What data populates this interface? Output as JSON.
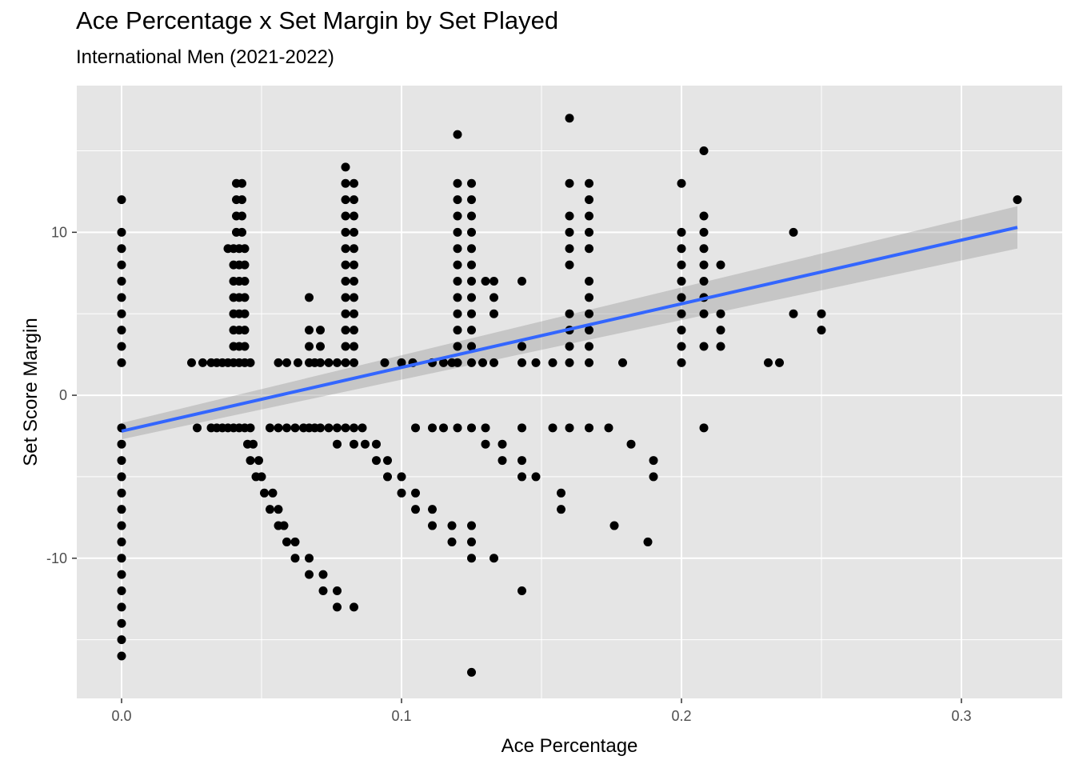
{
  "chart_data": {
    "type": "scatter",
    "title": "Ace Percentage x Set Margin by Set Played",
    "subtitle": "International Men (2021-2022)",
    "xlabel": "Ace Percentage",
    "ylabel": "Set Score Margin",
    "xlim": [
      -0.016,
      0.336
    ],
    "ylim": [
      -18.6,
      19.0
    ],
    "x_ticks": [
      {
        "value": 0.0,
        "label": "0.0"
      },
      {
        "value": 0.1,
        "label": "0.1"
      },
      {
        "value": 0.2,
        "label": "0.2"
      },
      {
        "value": 0.3,
        "label": "0.3"
      }
    ],
    "y_ticks": [
      {
        "value": 10,
        "label": "10"
      },
      {
        "value": 0,
        "label": "0"
      },
      {
        "value": -10,
        "label": "-10"
      }
    ],
    "grid": true,
    "colors": {
      "panel": "#e5e5e5",
      "grid": "#ffffff",
      "points": "#000000",
      "trend": "#3366ff",
      "band": "#999999"
    },
    "trend_line": {
      "method": "linear",
      "x": [
        0.0,
        0.32
      ],
      "y": [
        -2.2,
        10.3
      ],
      "ci_lower": [
        -2.7,
        9.0
      ],
      "ci_upper": [
        -1.7,
        11.6
      ]
    },
    "points": [
      [
        0,
        12
      ],
      [
        0,
        10
      ],
      [
        0,
        9
      ],
      [
        0,
        8
      ],
      [
        0,
        7
      ],
      [
        0,
        6
      ],
      [
        0,
        5
      ],
      [
        0,
        4
      ],
      [
        0,
        3
      ],
      [
        0,
        2
      ],
      [
        0,
        -2
      ],
      [
        0,
        -3
      ],
      [
        0,
        -4
      ],
      [
        0,
        -5
      ],
      [
        0,
        -6
      ],
      [
        0,
        -7
      ],
      [
        0,
        -8
      ],
      [
        0,
        -9
      ],
      [
        0,
        -10
      ],
      [
        0,
        -11
      ],
      [
        0,
        -12
      ],
      [
        0,
        -13
      ],
      [
        0,
        -14
      ],
      [
        0,
        -15
      ],
      [
        0,
        -16
      ],
      [
        0.025,
        2
      ],
      [
        0.029,
        2
      ],
      [
        0.032,
        2
      ],
      [
        0.034,
        2
      ],
      [
        0.036,
        2
      ],
      [
        0.038,
        2
      ],
      [
        0.04,
        2
      ],
      [
        0.042,
        2
      ],
      [
        0.044,
        2
      ],
      [
        0.046,
        2
      ],
      [
        0.027,
        -2
      ],
      [
        0.032,
        -2
      ],
      [
        0.034,
        -2
      ],
      [
        0.036,
        -2
      ],
      [
        0.038,
        -2
      ],
      [
        0.04,
        -2
      ],
      [
        0.042,
        -2
      ],
      [
        0.044,
        -2
      ],
      [
        0.046,
        -2
      ],
      [
        0.041,
        13
      ],
      [
        0.043,
        13
      ],
      [
        0.041,
        12
      ],
      [
        0.043,
        12
      ],
      [
        0.041,
        11
      ],
      [
        0.043,
        11
      ],
      [
        0.041,
        10
      ],
      [
        0.043,
        10
      ],
      [
        0.038,
        9
      ],
      [
        0.04,
        9
      ],
      [
        0.042,
        9
      ],
      [
        0.044,
        9
      ],
      [
        0.04,
        8
      ],
      [
        0.042,
        8
      ],
      [
        0.044,
        8
      ],
      [
        0.04,
        7
      ],
      [
        0.042,
        7
      ],
      [
        0.044,
        7
      ],
      [
        0.04,
        6
      ],
      [
        0.042,
        6
      ],
      [
        0.044,
        6
      ],
      [
        0.04,
        5
      ],
      [
        0.042,
        5
      ],
      [
        0.044,
        5
      ],
      [
        0.04,
        4
      ],
      [
        0.042,
        4
      ],
      [
        0.044,
        4
      ],
      [
        0.04,
        3
      ],
      [
        0.042,
        3
      ],
      [
        0.044,
        3
      ],
      [
        0.045,
        -3
      ],
      [
        0.047,
        -3
      ],
      [
        0.046,
        -4
      ],
      [
        0.049,
        -4
      ],
      [
        0.048,
        -5
      ],
      [
        0.05,
        -5
      ],
      [
        0.051,
        -6
      ],
      [
        0.054,
        -6
      ],
      [
        0.053,
        -7
      ],
      [
        0.056,
        -7
      ],
      [
        0.056,
        -8
      ],
      [
        0.058,
        -8
      ],
      [
        0.059,
        -9
      ],
      [
        0.062,
        -9
      ],
      [
        0.062,
        -10
      ],
      [
        0.067,
        -10
      ],
      [
        0.067,
        -11
      ],
      [
        0.072,
        -11
      ],
      [
        0.072,
        -12
      ],
      [
        0.077,
        -12
      ],
      [
        0.077,
        -13
      ],
      [
        0.083,
        -13
      ],
      [
        0.056,
        2
      ],
      [
        0.059,
        2
      ],
      [
        0.063,
        2
      ],
      [
        0.067,
        2
      ],
      [
        0.069,
        2
      ],
      [
        0.071,
        2
      ],
      [
        0.074,
        2
      ],
      [
        0.077,
        2
      ],
      [
        0.08,
        2
      ],
      [
        0.083,
        2
      ],
      [
        0.053,
        -2
      ],
      [
        0.056,
        -2
      ],
      [
        0.059,
        -2
      ],
      [
        0.062,
        -2
      ],
      [
        0.065,
        -2
      ],
      [
        0.067,
        -2
      ],
      [
        0.069,
        -2
      ],
      [
        0.071,
        -2
      ],
      [
        0.074,
        -2
      ],
      [
        0.077,
        -2
      ],
      [
        0.08,
        -2
      ],
      [
        0.083,
        -2
      ],
      [
        0.086,
        -2
      ],
      [
        0.067,
        6
      ],
      [
        0.067,
        4
      ],
      [
        0.071,
        4
      ],
      [
        0.067,
        3
      ],
      [
        0.071,
        3
      ],
      [
        0.08,
        14
      ],
      [
        0.08,
        13
      ],
      [
        0.083,
        13
      ],
      [
        0.08,
        12
      ],
      [
        0.083,
        12
      ],
      [
        0.08,
        11
      ],
      [
        0.083,
        11
      ],
      [
        0.08,
        10
      ],
      [
        0.083,
        10
      ],
      [
        0.08,
        9
      ],
      [
        0.083,
        9
      ],
      [
        0.08,
        8
      ],
      [
        0.083,
        8
      ],
      [
        0.08,
        7
      ],
      [
        0.083,
        7
      ],
      [
        0.08,
        6
      ],
      [
        0.083,
        6
      ],
      [
        0.08,
        5
      ],
      [
        0.083,
        5
      ],
      [
        0.08,
        4
      ],
      [
        0.083,
        4
      ],
      [
        0.08,
        3
      ],
      [
        0.083,
        3
      ],
      [
        0.077,
        -3
      ],
      [
        0.083,
        -3
      ],
      [
        0.087,
        -3
      ],
      [
        0.091,
        -3
      ],
      [
        0.091,
        -4
      ],
      [
        0.095,
        -4
      ],
      [
        0.095,
        -5
      ],
      [
        0.1,
        -5
      ],
      [
        0.1,
        -6
      ],
      [
        0.105,
        -6
      ],
      [
        0.105,
        -7
      ],
      [
        0.111,
        -7
      ],
      [
        0.111,
        -8
      ],
      [
        0.118,
        -8
      ],
      [
        0.118,
        -9
      ],
      [
        0.125,
        -9
      ],
      [
        0.125,
        -10
      ],
      [
        0.133,
        -10
      ],
      [
        0.143,
        -12
      ],
      [
        0.094,
        2
      ],
      [
        0.1,
        2
      ],
      [
        0.104,
        2
      ],
      [
        0.111,
        2
      ],
      [
        0.115,
        2
      ],
      [
        0.118,
        2
      ],
      [
        0.12,
        2
      ],
      [
        0.125,
        2
      ],
      [
        0.129,
        2
      ],
      [
        0.133,
        2
      ],
      [
        0.143,
        2
      ],
      [
        0.148,
        2
      ],
      [
        0.154,
        2
      ],
      [
        0.16,
        2
      ],
      [
        0.167,
        2
      ],
      [
        0.179,
        2
      ],
      [
        0.105,
        -2
      ],
      [
        0.111,
        -2
      ],
      [
        0.115,
        -2
      ],
      [
        0.12,
        -2
      ],
      [
        0.125,
        -2
      ],
      [
        0.13,
        -2
      ],
      [
        0.143,
        -2
      ],
      [
        0.154,
        -2
      ],
      [
        0.16,
        -2
      ],
      [
        0.174,
        -2
      ],
      [
        0.12,
        16
      ],
      [
        0.12,
        13
      ],
      [
        0.125,
        13
      ],
      [
        0.12,
        12
      ],
      [
        0.125,
        12
      ],
      [
        0.12,
        11
      ],
      [
        0.125,
        11
      ],
      [
        0.12,
        10
      ],
      [
        0.125,
        10
      ],
      [
        0.12,
        9
      ],
      [
        0.125,
        9
      ],
      [
        0.12,
        8
      ],
      [
        0.125,
        8
      ],
      [
        0.12,
        7
      ],
      [
        0.125,
        7
      ],
      [
        0.13,
        7
      ],
      [
        0.133,
        7
      ],
      [
        0.12,
        6
      ],
      [
        0.125,
        6
      ],
      [
        0.133,
        6
      ],
      [
        0.12,
        5
      ],
      [
        0.125,
        5
      ],
      [
        0.133,
        5
      ],
      [
        0.12,
        4
      ],
      [
        0.125,
        4
      ],
      [
        0.12,
        3
      ],
      [
        0.125,
        3
      ],
      [
        0.143,
        7
      ],
      [
        0.143,
        3
      ],
      [
        0.13,
        -3
      ],
      [
        0.136,
        -3
      ],
      [
        0.136,
        -4
      ],
      [
        0.143,
        -4
      ],
      [
        0.143,
        -5
      ],
      [
        0.148,
        -5
      ],
      [
        0.157,
        -6
      ],
      [
        0.157,
        -7
      ],
      [
        0.125,
        -8
      ],
      [
        0.125,
        -17
      ],
      [
        0.167,
        -2
      ],
      [
        0.182,
        -3
      ],
      [
        0.19,
        -4
      ],
      [
        0.19,
        -5
      ],
      [
        0.176,
        -8
      ],
      [
        0.188,
        -9
      ],
      [
        0.16,
        17
      ],
      [
        0.16,
        13
      ],
      [
        0.167,
        13
      ],
      [
        0.167,
        12
      ],
      [
        0.16,
        11
      ],
      [
        0.167,
        11
      ],
      [
        0.16,
        10
      ],
      [
        0.167,
        10
      ],
      [
        0.16,
        9
      ],
      [
        0.167,
        9
      ],
      [
        0.16,
        8
      ],
      [
        0.167,
        7
      ],
      [
        0.167,
        6
      ],
      [
        0.16,
        5
      ],
      [
        0.167,
        5
      ],
      [
        0.16,
        4
      ],
      [
        0.167,
        4
      ],
      [
        0.16,
        3
      ],
      [
        0.167,
        3
      ],
      [
        0.2,
        13
      ],
      [
        0.2,
        10
      ],
      [
        0.208,
        10
      ],
      [
        0.2,
        9
      ],
      [
        0.208,
        9
      ],
      [
        0.2,
        8
      ],
      [
        0.208,
        8
      ],
      [
        0.214,
        8
      ],
      [
        0.2,
        7
      ],
      [
        0.208,
        7
      ],
      [
        0.2,
        6
      ],
      [
        0.208,
        6
      ],
      [
        0.2,
        5
      ],
      [
        0.208,
        5
      ],
      [
        0.214,
        5
      ],
      [
        0.2,
        4
      ],
      [
        0.214,
        4
      ],
      [
        0.2,
        3
      ],
      [
        0.208,
        3
      ],
      [
        0.214,
        3
      ],
      [
        0.2,
        2
      ],
      [
        0.208,
        11
      ],
      [
        0.208,
        15
      ],
      [
        0.208,
        -2
      ],
      [
        0.231,
        2
      ],
      [
        0.235,
        2
      ],
      [
        0.24,
        10
      ],
      [
        0.24,
        5
      ],
      [
        0.25,
        5
      ],
      [
        0.25,
        4
      ],
      [
        0.32,
        12
      ]
    ]
  }
}
